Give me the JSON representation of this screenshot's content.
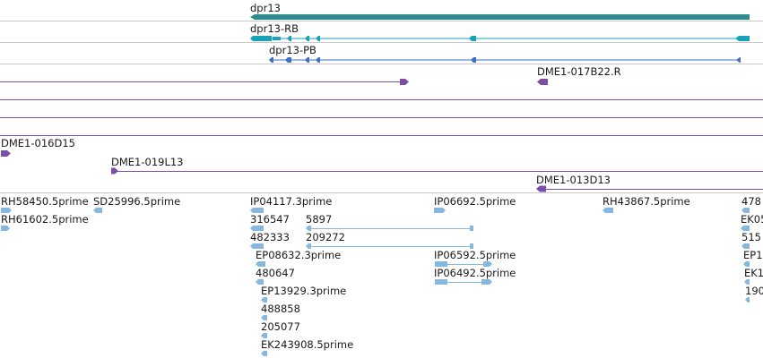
{
  "colors": {
    "gene": "#2e8b8b",
    "transcript_rb": "#1aa3b8",
    "transcript_pb": "#3d6fc4",
    "bac": "#7b4fa8",
    "est": "#86b7dc",
    "separator": "#c8c8c8"
  },
  "tracks": {
    "gene": {
      "label": "dpr13"
    },
    "transcripts": [
      {
        "label": "dpr13-RB"
      },
      {
        "label": "dpr13-PB"
      }
    ],
    "bacs": [
      {
        "label": "DME1-017B22.R"
      },
      {
        "label": "DME1-016D15"
      },
      {
        "label": "DME1-019L13"
      },
      {
        "label": "DME1-013D13"
      }
    ],
    "ests": [
      {
        "label": "RH58450.5prime"
      },
      {
        "label": "SD25996.5prime"
      },
      {
        "label": "RH61602.5prime"
      },
      {
        "label": "IP04117.3prime"
      },
      {
        "label": "316547"
      },
      {
        "label": "5897"
      },
      {
        "label": "482333"
      },
      {
        "label": "209272"
      },
      {
        "label": "EP08632.3prime"
      },
      {
        "label": "480647"
      },
      {
        "label": "EP13929.3prime"
      },
      {
        "label": "488858"
      },
      {
        "label": "205077"
      },
      {
        "label": "EK243908.5prime"
      },
      {
        "label": "IP06692.5prime"
      },
      {
        "label": "IP06592.5prime"
      },
      {
        "label": "IP06492.5prime"
      },
      {
        "label": "RH43867.5prime"
      },
      {
        "label": "478"
      },
      {
        "label": "EK05"
      },
      {
        "label": "515"
      },
      {
        "label": "EP1"
      },
      {
        "label": "EK1"
      },
      {
        "label": "190"
      }
    ]
  }
}
